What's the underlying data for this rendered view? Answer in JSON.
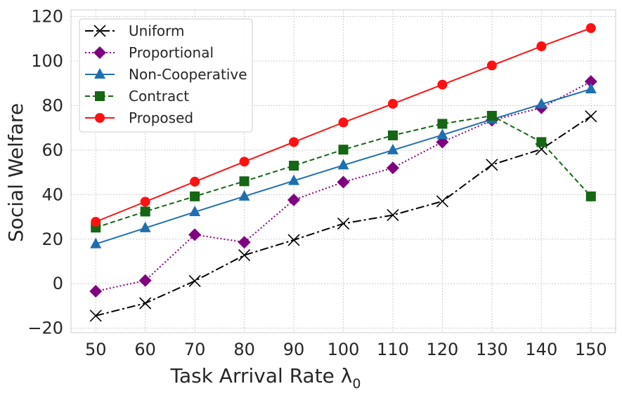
{
  "chart_data": {
    "type": "line",
    "xlabel": "Task Arrival Rate λ",
    "xlabel_sub": "0",
    "ylabel": "Social Welfare",
    "x": [
      50,
      60,
      70,
      80,
      90,
      100,
      110,
      120,
      130,
      140,
      150
    ],
    "xlim": [
      45,
      155
    ],
    "ylim": [
      -22,
      123
    ],
    "xticks": [
      "50",
      "60",
      "70",
      "80",
      "90",
      "100",
      "110",
      "120",
      "130",
      "140",
      "150"
    ],
    "yticks": [
      "−20",
      "0",
      "20",
      "40",
      "60",
      "80",
      "100",
      "120"
    ],
    "ytick_values": [
      -20,
      0,
      20,
      40,
      60,
      80,
      100,
      120
    ],
    "grid": true,
    "legend_position": "upper-left",
    "series": [
      {
        "name": "Uniform",
        "color": "#000000",
        "marker": "x",
        "dash": "12,4,3,4",
        "values": [
          -14.4,
          -8.8,
          1.2,
          12.8,
          19.6,
          27.0,
          30.8,
          37.0,
          53.4,
          60.4,
          75.2
        ]
      },
      {
        "name": "Proportional",
        "color": "#800080",
        "marker": "diamond",
        "dash": "2,3",
        "values": [
          -3.4,
          1.4,
          22.0,
          18.6,
          37.6,
          45.6,
          52.0,
          63.6,
          73.4,
          79.0,
          90.8
        ]
      },
      {
        "name": "Non-Cooperative",
        "color": "#1f6fb0",
        "marker": "triangle",
        "dash": "",
        "values": [
          17.8,
          25.0,
          32.2,
          39.2,
          46.2,
          53.2,
          60.0,
          66.8,
          73.8,
          80.6,
          87.4
        ]
      },
      {
        "name": "Contract",
        "color": "#156615",
        "marker": "square",
        "dash": "7,4",
        "values": [
          25.2,
          32.4,
          39.2,
          46.0,
          53.0,
          60.2,
          66.6,
          71.8,
          75.4,
          63.6,
          39.2
        ]
      },
      {
        "name": "Proposed",
        "color": "#ff1111",
        "marker": "circle",
        "dash": "",
        "values": [
          27.8,
          36.8,
          45.8,
          54.8,
          63.6,
          72.4,
          80.8,
          89.4,
          98.0,
          106.6,
          114.8
        ]
      }
    ]
  }
}
